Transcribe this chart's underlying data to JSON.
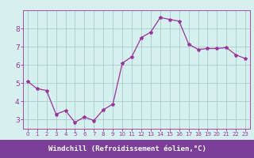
{
  "x": [
    0,
    1,
    2,
    3,
    4,
    5,
    6,
    7,
    8,
    9,
    10,
    11,
    12,
    13,
    14,
    15,
    16,
    17,
    18,
    19,
    20,
    21,
    22,
    23
  ],
  "y": [
    5.1,
    4.7,
    4.6,
    3.3,
    3.5,
    2.85,
    3.15,
    2.95,
    3.55,
    3.85,
    6.1,
    6.45,
    7.5,
    7.8,
    8.6,
    8.5,
    8.4,
    7.15,
    6.85,
    6.9,
    6.9,
    6.95,
    6.55,
    6.35
  ],
  "line_color": "#993399",
  "marker": "*",
  "marker_size": 3,
  "bg_color": "#d6f0f0",
  "grid_color": "#aacccc",
  "xlabel": "Windchill (Refroidissement éolien,°C)",
  "xlabel_bg": "#7b3f99",
  "xlabel_color": "#ffffff",
  "ylim": [
    2.5,
    9.0
  ],
  "xlim": [
    -0.5,
    23.5
  ],
  "yticks": [
    3,
    4,
    5,
    6,
    7,
    8
  ],
  "xticks": [
    0,
    1,
    2,
    3,
    4,
    5,
    6,
    7,
    8,
    9,
    10,
    11,
    12,
    13,
    14,
    15,
    16,
    17,
    18,
    19,
    20,
    21,
    22,
    23
  ],
  "tick_color": "#993399",
  "spine_color": "#993399",
  "figsize": [
    3.2,
    2.0
  ],
  "dpi": 100
}
